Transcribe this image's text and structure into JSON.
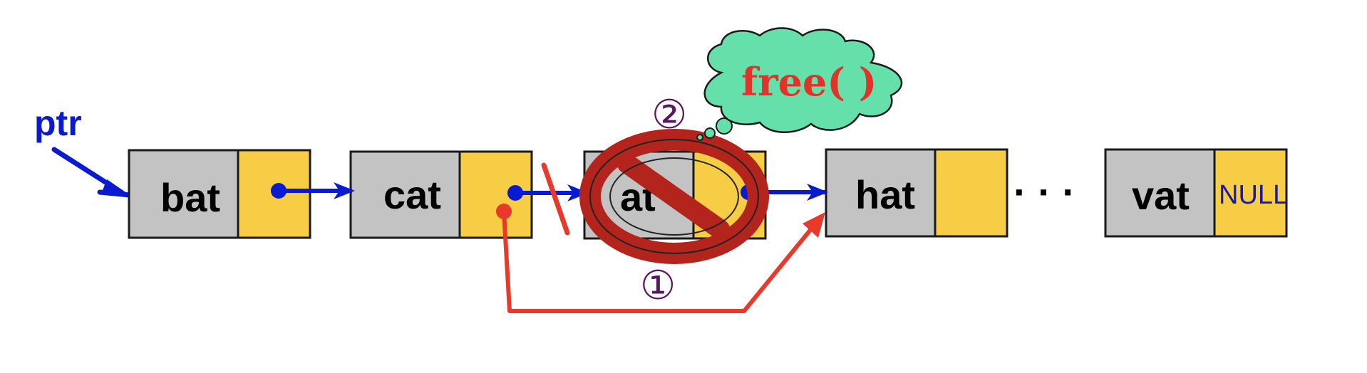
{
  "pointer": {
    "label": "ptr"
  },
  "nodes": [
    {
      "label": "bat"
    },
    {
      "label": "cat"
    },
    {
      "label": "at"
    },
    {
      "label": "hat"
    },
    {
      "label": "vat",
      "next": "NULL"
    }
  ],
  "ellipsis": "· · ·",
  "steps": {
    "one": "①",
    "two": "②"
  },
  "cloud": {
    "label": "free( )"
  },
  "colors": {
    "data_cell": "#c3c3c3",
    "link_cell": "#f7cd46",
    "link_arrow": "#0a1ad0",
    "relink_arrow": "#e8392b",
    "no_sign": "#b3241c",
    "cloud": "#66e0ab"
  }
}
